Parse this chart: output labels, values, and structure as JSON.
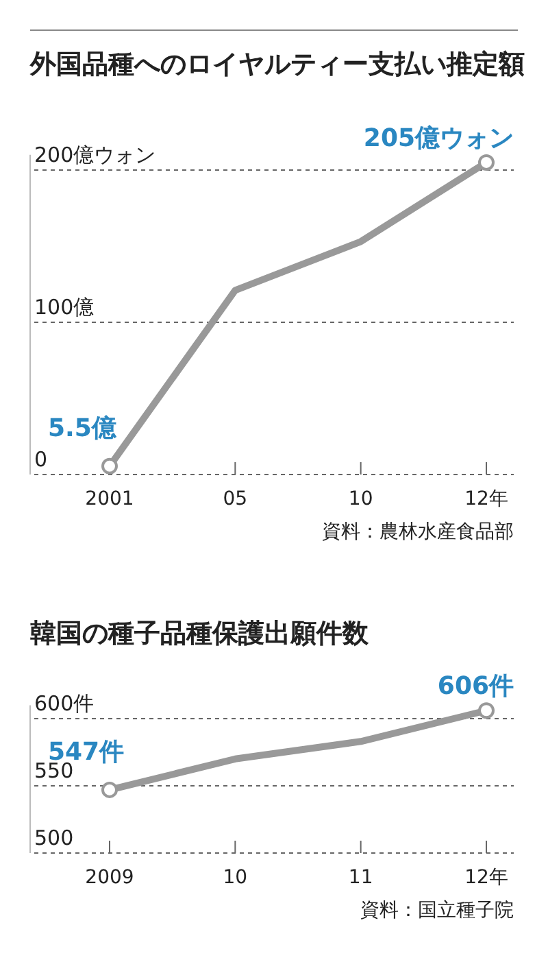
{
  "chart_data": [
    {
      "type": "line",
      "title": "外国品種へのロイヤルティー支払い推定額",
      "categories": [
        "2001",
        "05",
        "10",
        "12年"
      ],
      "series": [
        {
          "color": "#999999",
          "values": [
            5.5,
            121,
            153,
            205
          ],
          "value_labels": [
            "5.5億",
            null,
            null,
            "205億ウォン"
          ]
        }
      ],
      "ylim": [
        0,
        210
      ],
      "yticks": [
        0,
        {
          "value": 100,
          "label": "100億"
        },
        {
          "value": 200,
          "label": "200億ウォン"
        }
      ],
      "grid": "y",
      "marker": "circle",
      "annotations": [
        "資料：農林水産食品部"
      ]
    },
    {
      "type": "line",
      "title": "韓国の種子品種保護出願件数",
      "categories": [
        "2009",
        "10",
        "11",
        "12年"
      ],
      "series": [
        {
          "color": "#999999",
          "values": [
            547,
            570,
            583,
            606
          ],
          "value_labels": [
            "547件",
            null,
            null,
            "606件"
          ]
        }
      ],
      "ylim": [
        500,
        610
      ],
      "yticks": [
        500,
        550,
        {
          "value": 600,
          "label": "600件"
        }
      ],
      "grid": "y",
      "marker": "circle",
      "annotations": [
        "資料：国立種子院"
      ]
    }
  ]
}
